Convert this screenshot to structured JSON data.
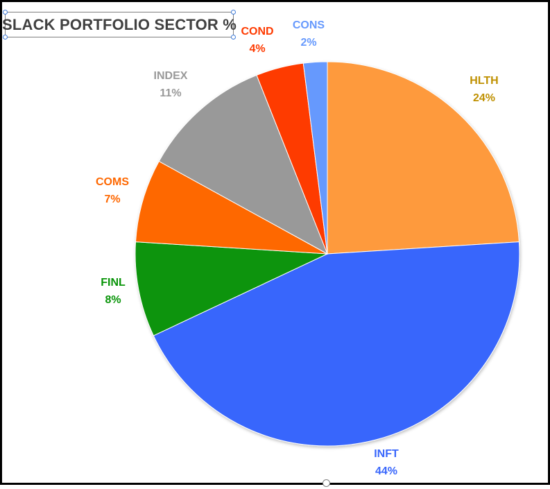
{
  "chart_data": {
    "type": "pie",
    "title": "SLACK PORTFOLIO SECTOR %",
    "start_angle_deg": 0,
    "direction": "clockwise",
    "slices": [
      {
        "label": "HLTH",
        "value": 24,
        "pct_label": "24%",
        "color": "#fe9a3c",
        "label_color": "#bf9000"
      },
      {
        "label": "INFT",
        "value": 44,
        "pct_label": "44%",
        "color": "#3866fc",
        "label_color": "#3866fc"
      },
      {
        "label": "FINL",
        "value": 8,
        "pct_label": "8%",
        "color": "#089408",
        "label_color": "#089408"
      },
      {
        "label": "COMS",
        "value": 7,
        "pct_label": "7%",
        "color": "#fe6700",
        "label_color": "#fe6700"
      },
      {
        "label": "INDEX",
        "value": 11,
        "pct_label": "11%",
        "color": "#999999",
        "label_color": "#999999"
      },
      {
        "label": "COND",
        "value": 4,
        "pct_label": "4%",
        "color": "#fe3a00",
        "label_color": "#fe3a00"
      },
      {
        "label": "CONS",
        "value": 2,
        "pct_label": "2%",
        "color": "#6699fd",
        "label_color": "#6699fd"
      }
    ]
  }
}
